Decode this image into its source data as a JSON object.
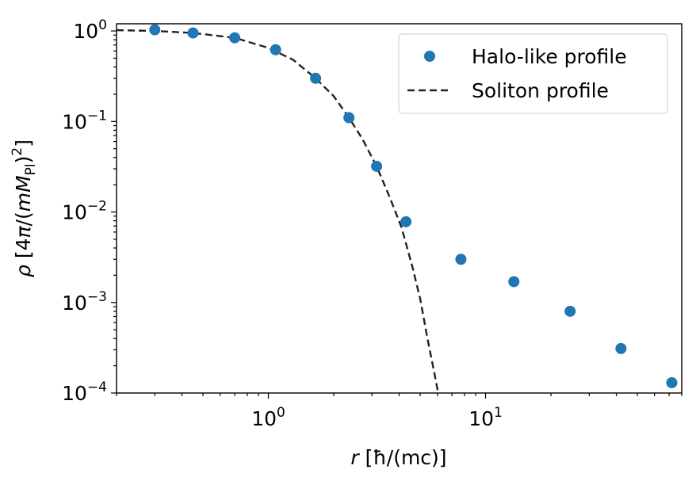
{
  "chart_data": {
    "type": "scatter",
    "log_x": true,
    "log_y": true,
    "xlim": [
      0.2,
      80
    ],
    "ylim": [
      0.0001,
      1.2
    ],
    "xlabel": "r [ħ/(mc)]",
    "ylabel": "ρ [4π/(mMPl)^2]",
    "x_ticks": [
      {
        "value": 1,
        "base": "10",
        "exp": "0"
      },
      {
        "value": 10,
        "base": "10",
        "exp": "1"
      }
    ],
    "y_ticks": [
      {
        "value": 1,
        "base": "10",
        "exp": "0"
      },
      {
        "value": 0.1,
        "base": "10",
        "exp": "−1"
      },
      {
        "value": 0.01,
        "base": "10",
        "exp": "−2"
      },
      {
        "value": 0.001,
        "base": "10",
        "exp": "−3"
      },
      {
        "value": 0.0001,
        "base": "10",
        "exp": "−4"
      }
    ],
    "legend_position": "top-right",
    "grid": false,
    "series": [
      {
        "name": "Halo-like profile",
        "kind": "scatter",
        "color": "#1f77b4",
        "points": [
          {
            "x": 0.3,
            "y": 1.03
          },
          {
            "x": 0.45,
            "y": 0.95
          },
          {
            "x": 0.7,
            "y": 0.84
          },
          {
            "x": 1.08,
            "y": 0.62
          },
          {
            "x": 1.65,
            "y": 0.3
          },
          {
            "x": 2.35,
            "y": 0.11
          },
          {
            "x": 3.15,
            "y": 0.032
          },
          {
            "x": 4.3,
            "y": 0.0078
          },
          {
            "x": 7.7,
            "y": 0.003
          },
          {
            "x": 13.5,
            "y": 0.0017
          },
          {
            "x": 24.5,
            "y": 0.0008
          },
          {
            "x": 42,
            "y": 0.00031
          },
          {
            "x": 72,
            "y": 0.00013
          }
        ]
      },
      {
        "name": "Soliton profile",
        "kind": "line",
        "color": "#222222",
        "dash": "dashed",
        "points": [
          {
            "x": 0.2,
            "y": 1.02
          },
          {
            "x": 0.3,
            "y": 1.0
          },
          {
            "x": 0.45,
            "y": 0.95
          },
          {
            "x": 0.7,
            "y": 0.84
          },
          {
            "x": 1.0,
            "y": 0.65
          },
          {
            "x": 1.3,
            "y": 0.48
          },
          {
            "x": 1.65,
            "y": 0.3
          },
          {
            "x": 2.0,
            "y": 0.19
          },
          {
            "x": 2.35,
            "y": 0.11
          },
          {
            "x": 2.7,
            "y": 0.065
          },
          {
            "x": 3.15,
            "y": 0.032
          },
          {
            "x": 3.6,
            "y": 0.015
          },
          {
            "x": 4.1,
            "y": 0.0068
          },
          {
            "x": 4.6,
            "y": 0.0025
          },
          {
            "x": 5.0,
            "y": 0.0011
          },
          {
            "x": 5.4,
            "y": 0.0004
          },
          {
            "x": 5.8,
            "y": 0.00017
          },
          {
            "x": 6.05,
            "y": 0.0001
          }
        ]
      }
    ]
  }
}
